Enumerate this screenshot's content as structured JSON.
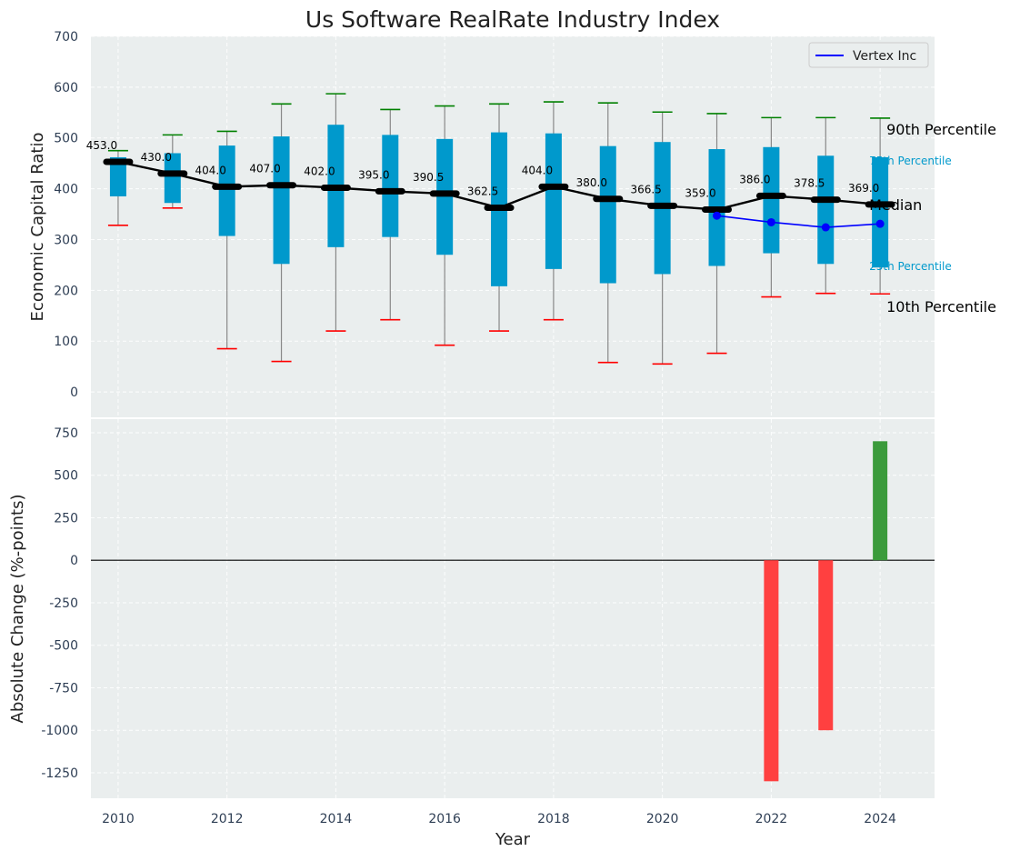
{
  "chart_data": [
    {
      "type": "box",
      "title": "Us Software RealRate Industry Index",
      "xlabel": "",
      "ylabel": "Economic Capital Ratio",
      "ylim": [
        -50,
        700
      ],
      "yticks": [
        0,
        100,
        200,
        300,
        400,
        500,
        600,
        700
      ],
      "grid": true,
      "legend": {
        "placement": "top-right",
        "entries": [
          {
            "label": "Vertex Inc",
            "color": "#0000ff"
          }
        ]
      },
      "annotations": {
        "p90": "90th Percentile",
        "p75": "75th Percentile",
        "median": "Median",
        "p25": "25th Percentile",
        "p10": "10th Percentile"
      },
      "colors": {
        "box": "#0099cc",
        "median": "#000000",
        "p90": "#008000",
        "p10": "#ff0000",
        "whisker": "#888888",
        "company": "#0000ff",
        "background": "#eaeeee"
      },
      "series": [
        {
          "year": 2010,
          "p10": 328,
          "p25": 385,
          "median": 453.0,
          "p75": 462,
          "p90": 475
        },
        {
          "year": 2011,
          "p10": 362,
          "p25": 372,
          "median": 430.0,
          "p75": 470,
          "p90": 506
        },
        {
          "year": 2012,
          "p10": 85,
          "p25": 307,
          "median": 404.0,
          "p75": 485,
          "p90": 513
        },
        {
          "year": 2013,
          "p10": 60,
          "p25": 252,
          "median": 407.0,
          "p75": 503,
          "p90": 567
        },
        {
          "year": 2014,
          "p10": 120,
          "p25": 285,
          "median": 402.0,
          "p75": 526,
          "p90": 587
        },
        {
          "year": 2015,
          "p10": 142,
          "p25": 305,
          "median": 395.0,
          "p75": 506,
          "p90": 556
        },
        {
          "year": 2016,
          "p10": 92,
          "p25": 270,
          "median": 390.5,
          "p75": 498,
          "p90": 563
        },
        {
          "year": 2017,
          "p10": 120,
          "p25": 208,
          "median": 362.5,
          "p75": 511,
          "p90": 567
        },
        {
          "year": 2018,
          "p10": 142,
          "p25": 242,
          "median": 404.0,
          "p75": 509,
          "p90": 571
        },
        {
          "year": 2019,
          "p10": 58,
          "p25": 214,
          "median": 380.0,
          "p75": 484,
          "p90": 569
        },
        {
          "year": 2020,
          "p10": 55,
          "p25": 232,
          "median": 366.5,
          "p75": 492,
          "p90": 551
        },
        {
          "year": 2021,
          "p10": 76,
          "p25": 248,
          "median": 359.0,
          "p75": 478,
          "p90": 548
        },
        {
          "year": 2022,
          "p10": 187,
          "p25": 273,
          "median": 386.0,
          "p75": 482,
          "p90": 540
        },
        {
          "year": 2023,
          "p10": 194,
          "p25": 252,
          "median": 378.5,
          "p75": 465,
          "p90": 540
        },
        {
          "year": 2024,
          "p10": 193,
          "p25": 245,
          "median": 369.0,
          "p75": 462,
          "p90": 539
        }
      ],
      "company_series": {
        "name": "Vertex Inc",
        "x": [
          2021,
          2022,
          2023,
          2024
        ],
        "y": [
          347,
          334,
          324,
          331
        ]
      }
    },
    {
      "type": "bar",
      "title": "",
      "xlabel": "Year",
      "ylabel": "Absolute Change (%-points)",
      "ylim": [
        -1400,
        830
      ],
      "yticks": [
        -1250,
        -1000,
        -750,
        -500,
        -250,
        0,
        250,
        500,
        750
      ],
      "xticks": [
        2010,
        2012,
        2014,
        2016,
        2018,
        2020,
        2022,
        2024
      ],
      "xlim": [
        2009.5,
        2025
      ],
      "grid": true,
      "colors": {
        "positive": "#3b9b3b",
        "negative": "#ff4040"
      },
      "x": [
        2022,
        2023,
        2024
      ],
      "values": [
        -1300,
        -1000,
        700
      ]
    }
  ]
}
